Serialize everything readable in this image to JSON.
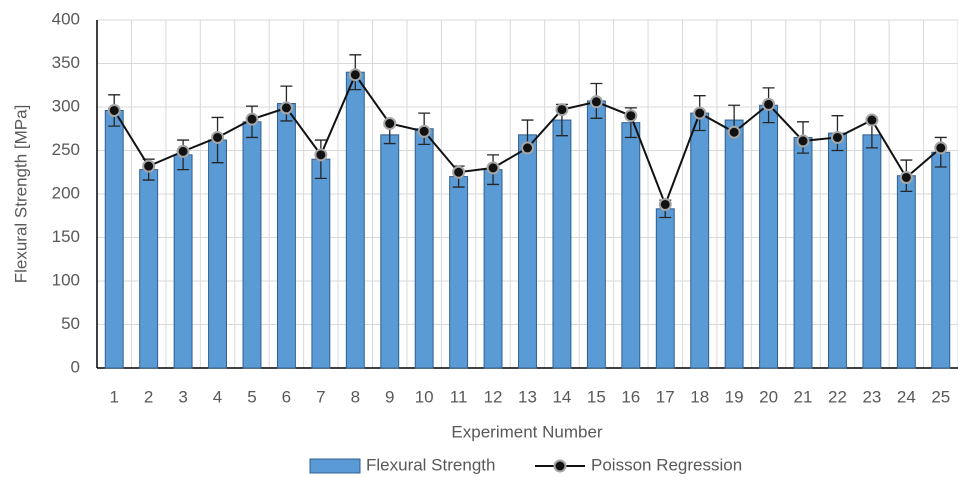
{
  "chart_data": {
    "type": "bar_line",
    "x_label": "Experiment Number",
    "y_label": "Flexural Strength [MPa]",
    "categories": [
      "1",
      "2",
      "3",
      "4",
      "5",
      "6",
      "7",
      "8",
      "9",
      "10",
      "11",
      "12",
      "13",
      "14",
      "15",
      "16",
      "17",
      "18",
      "19",
      "20",
      "21",
      "22",
      "23",
      "24",
      "25"
    ],
    "series": [
      {
        "name": "Flexural Strength",
        "type": "bar",
        "color": "#5b9bd5",
        "edge_color": "#2f5f8f",
        "values": [
          296,
          228,
          245,
          262,
          283,
          304,
          240,
          340,
          268,
          275,
          220,
          228,
          268,
          285,
          307,
          282,
          183,
          293,
          285,
          302,
          265,
          270,
          268,
          221,
          248
        ],
        "errors": [
          18,
          12,
          17,
          26,
          18,
          20,
          22,
          20,
          10,
          18,
          12,
          17,
          17,
          18,
          20,
          17,
          10,
          20,
          17,
          20,
          18,
          20,
          15,
          18,
          17
        ]
      },
      {
        "name": "Poisson Regression",
        "type": "line",
        "color": "#111111",
        "values": [
          296,
          232,
          249,
          265,
          286,
          299,
          245,
          337,
          281,
          272,
          225,
          230,
          253,
          297,
          306,
          290,
          188,
          293,
          271,
          303,
          261,
          265,
          285,
          219,
          253
        ]
      }
    ],
    "ylim": [
      0,
      400
    ],
    "yticks": [
      0,
      50,
      100,
      150,
      200,
      250,
      300,
      350,
      400
    ],
    "grid": true,
    "legend": "bottom"
  }
}
